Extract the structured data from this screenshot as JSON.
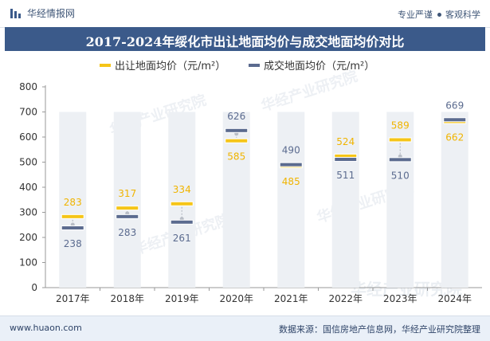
{
  "header": {
    "brand": "华经情报网",
    "slogan_left": "专业严谨",
    "slogan_right": "客观科学"
  },
  "footer": {
    "website": "www.huaon.com",
    "source": "数据来源：国信房地产信息网，华经产业研究院整理"
  },
  "watermark": "华经产业研究院",
  "colors": {
    "series_a": "#f5c518",
    "series_b": "#5b6b8f",
    "label_a": "#f0b400",
    "label_b": "#5b6b8f",
    "column": "#edf0f4",
    "title_bar": "#3b5a8a"
  },
  "chart_data": {
    "type": "bar",
    "title": "2017-2024年绥化市出让地面均价与成交地面均价对比",
    "categories": [
      "2017年",
      "2018年",
      "2019年",
      "2020年",
      "2021年",
      "2022年",
      "2023年",
      "2024年"
    ],
    "series": [
      {
        "name": "出让地面均价（元/m²）",
        "values": [
          283,
          317,
          334,
          585,
          485,
          524,
          589,
          662
        ]
      },
      {
        "name": "成交地面均价（元/m²）",
        "values": [
          238,
          283,
          261,
          626,
          490,
          511,
          510,
          669
        ]
      }
    ],
    "ylim": [
      0,
      800
    ],
    "yticks": [
      0,
      100,
      200,
      300,
      400,
      500,
      600,
      700,
      800
    ],
    "column_max": 700,
    "xlabel": "",
    "ylabel": ""
  }
}
